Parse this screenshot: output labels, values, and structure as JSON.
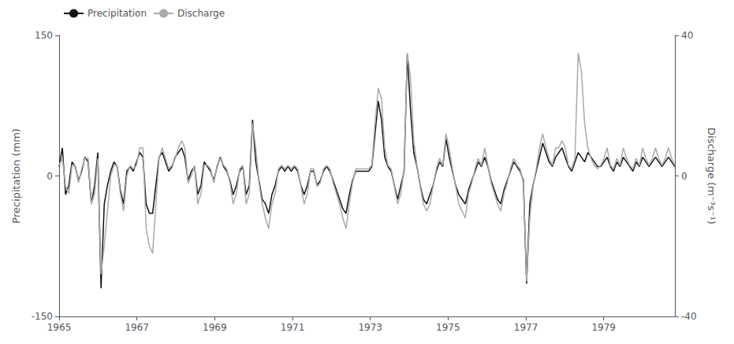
{
  "chart_data": {
    "type": "line",
    "ylabel": "Precipitation (mm)",
    "y2label": "Discharge (m⁻³s⁻¹)",
    "xlim": [
      1965.0,
      1980.83
    ],
    "xticks": [
      1965,
      1967,
      1969,
      1971,
      1973,
      1975,
      1977,
      1979
    ],
    "ylim": [
      -150,
      150
    ],
    "yticks": [
      -150,
      0,
      150
    ],
    "y2lim": [
      -40,
      40
    ],
    "y2ticks": [
      -40,
      0,
      40
    ],
    "grid": false,
    "legend": "upper left",
    "x": [
      1965,
      1965.0829,
      1965.1658,
      1965.2486,
      1965.3315,
      1965.4144,
      1965.4973,
      1965.5802,
      1965.663,
      1965.7459,
      1965.8288,
      1965.9117,
      1965.9946,
      1966.0774,
      1966.1603,
      1966.2432,
      1966.3261,
      1966.409,
      1966.4918,
      1966.5747,
      1966.6576,
      1966.7405,
      1966.8234,
      1966.9062,
      1966.9891,
      1967.072,
      1967.1549,
      1967.2377,
      1967.3206,
      1967.4035,
      1967.4864,
      1967.5693,
      1967.6521,
      1967.735,
      1967.8179,
      1967.9008,
      1967.9837,
      1968.0665,
      1968.1494,
      1968.2323,
      1968.3152,
      1968.3981,
      1968.4809,
      1968.5638,
      1968.6467,
      1968.7296,
      1968.8125,
      1968.8953,
      1968.9782,
      1969.0611,
      1969.144,
      1969.2269,
      1969.3097,
      1969.3926,
      1969.4755,
      1969.5584,
      1969.6413,
      1969.7241,
      1969.807,
      1969.8899,
      1969.9728,
      1970.0557,
      1970.1385,
      1970.2214,
      1970.3043,
      1970.3872,
      1970.4701,
      1970.5529,
      1970.6358,
      1970.7187,
      1970.8016,
      1970.8845,
      1970.9673,
      1971.0502,
      1971.1331,
      1971.216,
      1971.2988,
      1971.3817,
      1971.4646,
      1971.5475,
      1971.6304,
      1971.7132,
      1971.7961,
      1971.879,
      1971.9619,
      1972.0448,
      1972.1276,
      1972.2105,
      1972.2934,
      1972.3763,
      1972.4592,
      1972.542,
      1972.6249,
      1972.7078,
      1972.7907,
      1972.8736,
      1972.9564,
      1973.0393,
      1973.1222,
      1973.2051,
      1973.288,
      1973.3708,
      1973.4537,
      1973.5366,
      1973.6195,
      1973.7024,
      1973.7852,
      1973.8681,
      1973.951,
      1974.0339,
      1974.1168,
      1974.1996,
      1974.2825,
      1974.3654,
      1974.4483,
      1974.5312,
      1974.614,
      1974.6969,
      1974.7798,
      1974.8627,
      1974.9455,
      1975.0284,
      1975.1113,
      1975.1942,
      1975.2771,
      1975.3599,
      1975.4428,
      1975.5257,
      1975.6086,
      1975.6915,
      1975.7743,
      1975.8572,
      1975.9401,
      1976.023,
      1976.1059,
      1976.1887,
      1976.2716,
      1976.3545,
      1976.4374,
      1976.5203,
      1976.6031,
      1976.686,
      1976.7689,
      1976.8518,
      1976.9347,
      1977.0175,
      1977.1004,
      1977.1833,
      1977.2662,
      1977.3491,
      1977.4319,
      1977.5148,
      1977.5977,
      1977.6806,
      1977.7635,
      1977.8463,
      1977.9292,
      1978.0121,
      1978.095,
      1978.1779,
      1978.2607,
      1978.3436,
      1978.4265,
      1978.5094,
      1978.5923,
      1978.6751,
      1978.758,
      1978.8409,
      1978.9238,
      1979.0066,
      1979.0895,
      1979.1724,
      1979.2553,
      1979.3382,
      1979.421,
      1979.5039,
      1979.5868,
      1979.6697,
      1979.7526,
      1979.8354,
      1979.9183,
      1980.0012,
      1980.0841,
      1980.167,
      1980.2498,
      1980.3327,
      1980.4156,
      1980.4985,
      1980.5814,
      1980.6642,
      1980.7471,
      1980.83
    ],
    "series": [
      {
        "name": "Precipitation",
        "color": "#111111",
        "axis": "y",
        "values": [
          10,
          30,
          -20,
          -10,
          15,
          10,
          -5,
          5,
          20,
          15,
          -30,
          -10,
          25,
          -120,
          -30,
          -10,
          5,
          15,
          10,
          -15,
          -30,
          5,
          10,
          5,
          15,
          25,
          20,
          -30,
          -40,
          -40,
          -10,
          20,
          25,
          15,
          5,
          10,
          20,
          25,
          30,
          20,
          -5,
          5,
          10,
          -20,
          -10,
          15,
          10,
          5,
          -5,
          10,
          20,
          10,
          5,
          -5,
          -20,
          -10,
          5,
          10,
          -20,
          -10,
          60,
          15,
          -5,
          -25,
          -30,
          -40,
          -20,
          -10,
          5,
          10,
          5,
          10,
          5,
          10,
          5,
          -10,
          -20,
          -10,
          5,
          5,
          -10,
          -5,
          5,
          10,
          5,
          -5,
          -15,
          -25,
          -35,
          -40,
          -20,
          -5,
          5,
          5,
          5,
          5,
          5,
          10,
          45,
          80,
          60,
          20,
          10,
          5,
          -10,
          -25,
          -10,
          5,
          130,
          70,
          25,
          10,
          -10,
          -25,
          -30,
          -20,
          -10,
          5,
          15,
          10,
          40,
          20,
          5,
          -10,
          -20,
          -25,
          -30,
          -15,
          -5,
          5,
          15,
          10,
          20,
          10,
          -5,
          -15,
          -25,
          -30,
          -15,
          -5,
          5,
          15,
          10,
          5,
          -5,
          -115,
          -30,
          -10,
          5,
          20,
          35,
          25,
          15,
          10,
          20,
          25,
          30,
          20,
          10,
          5,
          15,
          25,
          20,
          15,
          25,
          20,
          15,
          10,
          10,
          15,
          20,
          10,
          5,
          15,
          10,
          20,
          15,
          10,
          5,
          15,
          10,
          20,
          15,
          10,
          15,
          20,
          15,
          10,
          15,
          20,
          15,
          10
        ]
      },
      {
        "name": "Discharge",
        "color": "#aaaaaa",
        "axis": "y2",
        "values": [
          3,
          5,
          -3,
          -5,
          3,
          3,
          -2,
          2,
          5,
          5,
          -8,
          -5,
          5,
          -28,
          -20,
          -10,
          0,
          3,
          3,
          -5,
          -10,
          0,
          3,
          2,
          3,
          8,
          8,
          -15,
          -20,
          -22,
          -8,
          5,
          8,
          5,
          2,
          3,
          5,
          8,
          10,
          8,
          -2,
          0,
          3,
          -8,
          -5,
          3,
          3,
          2,
          -2,
          3,
          5,
          3,
          2,
          -2,
          -8,
          -5,
          2,
          3,
          -8,
          -5,
          15,
          8,
          -2,
          -8,
          -12,
          -15,
          -8,
          -5,
          2,
          3,
          2,
          3,
          2,
          3,
          2,
          -3,
          -8,
          -5,
          2,
          2,
          -3,
          -2,
          2,
          3,
          2,
          -2,
          -5,
          -8,
          -12,
          -15,
          -8,
          -2,
          2,
          2,
          2,
          2,
          2,
          3,
          15,
          25,
          22,
          8,
          3,
          2,
          -3,
          -8,
          -5,
          2,
          35,
          28,
          10,
          3,
          -3,
          -8,
          -10,
          -8,
          -3,
          2,
          5,
          3,
          12,
          8,
          2,
          -3,
          -8,
          -10,
          -12,
          -5,
          -2,
          2,
          5,
          3,
          8,
          3,
          -2,
          -5,
          -8,
          -10,
          -5,
          -2,
          2,
          5,
          3,
          2,
          -2,
          -30,
          -12,
          -3,
          2,
          8,
          12,
          8,
          5,
          3,
          8,
          8,
          10,
          8,
          3,
          2,
          5,
          35,
          30,
          15,
          8,
          5,
          3,
          2,
          3,
          5,
          8,
          3,
          2,
          5,
          3,
          8,
          5,
          3,
          2,
          5,
          3,
          8,
          5,
          3,
          5,
          8,
          5,
          3,
          5,
          8,
          5,
          3
        ]
      }
    ]
  }
}
